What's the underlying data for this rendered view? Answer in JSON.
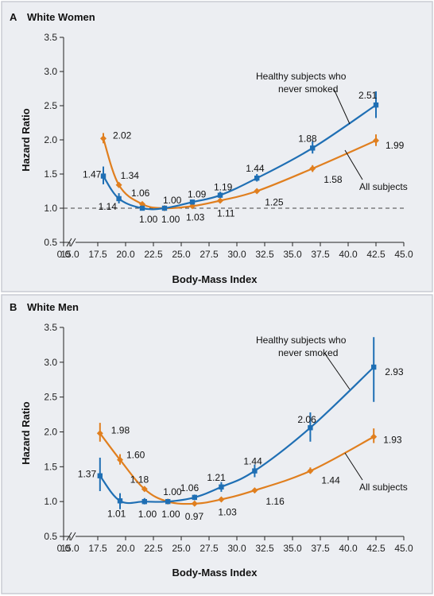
{
  "chart_data": [
    {
      "type": "line",
      "panel_letter": "A",
      "title": "White Women",
      "xlabel": "Body-Mass Index",
      "ylabel": "Hazard Ratio",
      "xticks": [
        "0.0",
        "15.0",
        "17.5",
        "20.0",
        "22.5",
        "25.0",
        "27.5",
        "30.0",
        "32.5",
        "35.0",
        "37.5",
        "40.0",
        "42.5",
        "45.0"
      ],
      "yticks": [
        "0.5",
        "1.0",
        "1.5",
        "2.0",
        "2.5",
        "3.0",
        "3.5"
      ],
      "xlim": [
        15,
        45
      ],
      "ylim": [
        0.5,
        3.5
      ],
      "reference_line": 1.0,
      "axis_break": true,
      "series": [
        {
          "name": "Healthy subjects who never smoked",
          "color": "#1f6fb4",
          "x": [
            18.0,
            19.4,
            21.5,
            23.5,
            26.0,
            28.5,
            31.8,
            36.8,
            42.5
          ],
          "y": [
            1.47,
            1.14,
            1.0,
            1.0,
            1.09,
            1.19,
            1.44,
            1.88,
            2.51
          ],
          "ci_low": [
            1.35,
            1.07,
            0.97,
            0.98,
            1.06,
            1.15,
            1.39,
            1.8,
            2.32
          ],
          "ci_high": [
            1.61,
            1.22,
            1.03,
            1.02,
            1.12,
            1.24,
            1.5,
            1.98,
            2.71
          ],
          "labels": [
            "1.47",
            "1.14",
            "1.00",
            "1.00",
            "1.09",
            "1.19",
            "1.44",
            "1.88",
            "2.51"
          ]
        },
        {
          "name": "All subjects",
          "color": "#e07f1f",
          "x": [
            18.0,
            19.4,
            21.5,
            23.5,
            26.0,
            28.5,
            31.8,
            36.8,
            42.5
          ],
          "y": [
            2.02,
            1.34,
            1.06,
            1.0,
            1.03,
            1.11,
            1.25,
            1.58,
            1.99
          ],
          "ci_low": [
            1.95,
            1.3,
            1.04,
            0.98,
            1.01,
            1.09,
            1.22,
            1.53,
            1.91
          ],
          "ci_high": [
            2.1,
            1.38,
            1.08,
            1.02,
            1.05,
            1.13,
            1.28,
            1.63,
            2.08
          ],
          "labels": [
            "2.02",
            "1.34",
            "1.06",
            "1.00",
            "1.03",
            "1.11",
            "1.25",
            "1.58",
            "1.99"
          ]
        }
      ],
      "annotations": [
        {
          "lines": [
            "Healthy subjects who",
            "never smoked"
          ],
          "series": 0
        },
        {
          "lines": [
            "All subjects"
          ],
          "series": 1
        }
      ]
    },
    {
      "type": "line",
      "panel_letter": "B",
      "title": "White Men",
      "xlabel": "Body-Mass Index",
      "ylabel": "Hazard Ratio",
      "xticks": [
        "0.0",
        "15.0",
        "17.5",
        "20.0",
        "22.5",
        "25.0",
        "27.5",
        "30.0",
        "32.5",
        "35.0",
        "37.5",
        "40.0",
        "42.5",
        "45.0"
      ],
      "yticks": [
        "0.5",
        "1.0",
        "1.5",
        "2.0",
        "2.5",
        "3.0",
        "3.5"
      ],
      "xlim": [
        15,
        45
      ],
      "ylim": [
        0.5,
        3.5
      ],
      "reference_line": null,
      "axis_break": true,
      "series": [
        {
          "name": "Healthy subjects who never smoked",
          "color": "#1f6fb4",
          "x": [
            17.7,
            19.5,
            21.7,
            23.8,
            26.2,
            28.6,
            31.6,
            36.6,
            42.3
          ],
          "y": [
            1.37,
            1.01,
            1.0,
            1.0,
            1.06,
            1.21,
            1.44,
            2.06,
            2.93
          ],
          "ci_low": [
            1.15,
            0.89,
            0.96,
            0.98,
            1.02,
            1.14,
            1.35,
            1.86,
            2.43
          ],
          "ci_high": [
            1.63,
            1.12,
            1.05,
            1.03,
            1.1,
            1.28,
            1.53,
            2.28,
            3.36
          ],
          "labels": [
            "1.37",
            "1.01",
            "1.00",
            "1.00",
            "1.06",
            "1.21",
            "1.44",
            "2.06",
            "2.93"
          ]
        },
        {
          "name": "All subjects",
          "color": "#e07f1f",
          "x": [
            17.7,
            19.5,
            21.7,
            23.8,
            26.2,
            28.6,
            31.6,
            36.6,
            42.3
          ],
          "y": [
            1.98,
            1.6,
            1.18,
            1.0,
            0.97,
            1.03,
            1.16,
            1.44,
            1.93
          ],
          "ci_low": [
            1.86,
            1.53,
            1.15,
            0.98,
            0.95,
            1.01,
            1.13,
            1.4,
            1.84
          ],
          "ci_high": [
            2.13,
            1.68,
            1.21,
            1.02,
            0.99,
            1.05,
            1.19,
            1.49,
            2.05
          ],
          "labels": [
            "1.98",
            "1.60",
            "1.18",
            "1.00",
            "0.97",
            "1.03",
            "1.16",
            "1.44",
            "1.93"
          ]
        }
      ],
      "annotations": [
        {
          "lines": [
            "Healthy subjects who",
            "never smoked"
          ],
          "series": 0
        },
        {
          "lines": [
            "All subjects"
          ],
          "series": 1
        }
      ]
    }
  ]
}
